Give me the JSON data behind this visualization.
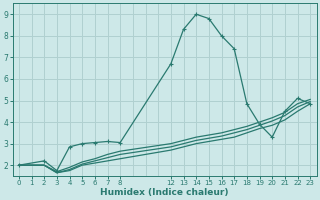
{
  "bg_color": "#cde8e8",
  "grid_color": "#b0d0d0",
  "line_color": "#2a7a70",
  "xlabel": "Humidex (Indice chaleur)",
  "xlim": [
    -0.5,
    23.5
  ],
  "ylim": [
    1.5,
    9.5
  ],
  "yticks": [
    2,
    3,
    4,
    5,
    6,
    7,
    8,
    9
  ],
  "xtick_show": [
    0,
    1,
    2,
    3,
    4,
    5,
    6,
    7,
    8,
    12,
    13,
    14,
    15,
    16,
    17,
    18,
    19,
    20,
    21,
    22,
    23
  ],
  "xtick_labels": [
    "0",
    "1",
    "2",
    "3",
    "4",
    "5",
    "6",
    "7",
    "8",
    "12",
    "13",
    "14",
    "15",
    "16",
    "17",
    "18",
    "19",
    "20",
    "21",
    "22",
    "23"
  ],
  "line1_x": [
    0,
    2,
    3,
    4,
    5,
    6,
    7,
    8,
    12,
    13,
    14,
    15,
    16,
    17,
    18,
    19,
    20,
    21,
    22,
    23
  ],
  "line1_y": [
    2.0,
    2.2,
    1.75,
    2.85,
    3.0,
    3.05,
    3.1,
    3.05,
    6.7,
    8.3,
    9.0,
    8.8,
    8.0,
    7.4,
    4.85,
    3.9,
    3.3,
    4.5,
    5.1,
    4.85
  ],
  "line2_x": [
    0,
    2,
    3,
    4,
    5,
    6,
    7,
    8,
    12,
    13,
    14,
    15,
    16,
    17,
    18,
    19,
    20,
    21,
    22,
    23
  ],
  "line2_y": [
    2.0,
    2.0,
    1.65,
    1.75,
    2.0,
    2.1,
    2.2,
    2.3,
    2.7,
    2.85,
    3.0,
    3.1,
    3.2,
    3.3,
    3.5,
    3.7,
    3.85,
    4.1,
    4.5,
    4.85
  ],
  "line3_x": [
    0,
    2,
    3,
    4,
    5,
    6,
    7,
    8,
    12,
    13,
    14,
    15,
    16,
    17,
    18,
    19,
    20,
    21,
    22,
    23
  ],
  "line3_y": [
    2.0,
    2.0,
    1.65,
    1.8,
    2.05,
    2.2,
    2.35,
    2.5,
    2.85,
    3.0,
    3.15,
    3.25,
    3.35,
    3.5,
    3.65,
    3.85,
    4.05,
    4.3,
    4.7,
    4.95
  ],
  "line4_x": [
    0,
    2,
    3,
    4,
    5,
    6,
    7,
    8,
    12,
    13,
    14,
    15,
    16,
    17,
    18,
    19,
    20,
    21,
    22,
    23
  ],
  "line4_y": [
    2.0,
    2.0,
    1.7,
    1.9,
    2.15,
    2.3,
    2.5,
    2.65,
    3.0,
    3.15,
    3.3,
    3.4,
    3.5,
    3.65,
    3.8,
    4.0,
    4.2,
    4.45,
    4.85,
    5.05
  ]
}
